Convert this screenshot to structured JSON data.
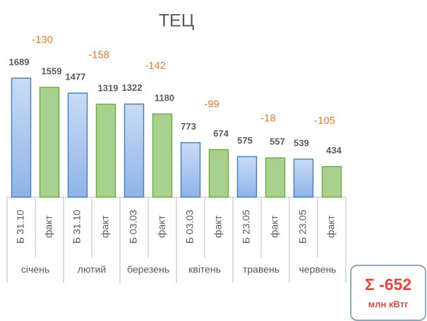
{
  "chart_data": {
    "type": "bar",
    "title": "ТЕЦ",
    "categories": [
      "Б 31.10",
      "факт",
      "Б 31.10",
      "факт",
      "Б 03.03",
      "факт",
      "Б 03.03",
      "факт",
      "Б 23.05",
      "факт",
      "Б 23.05",
      "факт"
    ],
    "groups": [
      "січень",
      "лютий",
      "березень",
      "квітень",
      "травень",
      "червень"
    ],
    "values": [
      1689,
      1559,
      1477,
      1319,
      1322,
      1180,
      773,
      674,
      575,
      557,
      539,
      434
    ],
    "colors": [
      "#a9c6ee",
      "#a9d18e"
    ],
    "annotations": [
      -130,
      -158,
      -142,
      -99,
      -18,
      -105
    ],
    "annotation_color": "#ed7d31",
    "ylim": [
      0,
      1800
    ],
    "total": {
      "label": "Σ -652",
      "unit": "млн кВтг"
    }
  }
}
